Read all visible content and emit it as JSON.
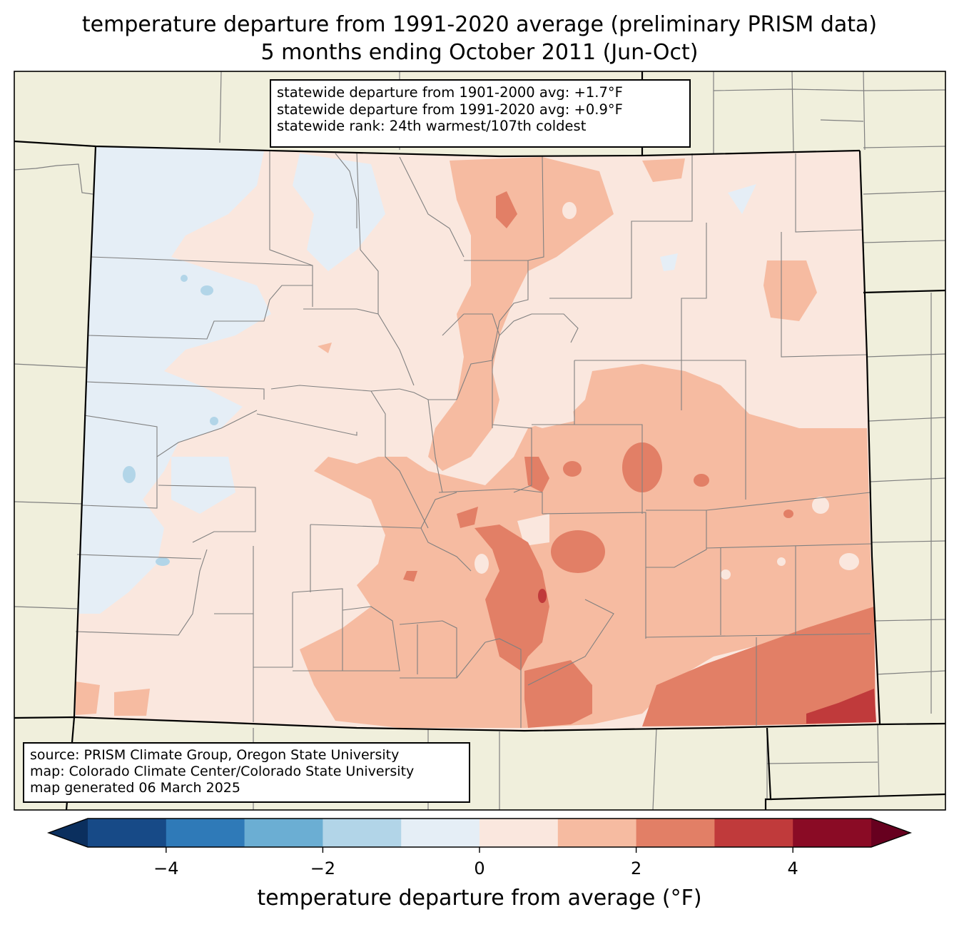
{
  "title": {
    "line1": "temperature departure from 1991-2020 average (preliminary PRISM data)",
    "line2": "5 months ending October 2011 (Jun-Oct)"
  },
  "stats": {
    "line1": "statewide departure from 1901-2000 avg: +1.7°F",
    "line2": "statewide departure from 1991-2020 avg: +0.9°F",
    "line3": "statewide rank: 24th warmest/107th coldest"
  },
  "source": {
    "line1": "source: PRISM Climate Group, Oregon State University",
    "line2": "map: Colorado Climate Center/Colorado State University",
    "line3": "map generated 06 March 2025"
  },
  "colorbar": {
    "label": "temperature departure from average (°F)",
    "ticks": [
      "−4",
      "−2",
      "0",
      "2",
      "4"
    ],
    "tick_values": [
      -4,
      -2,
      0,
      2,
      4
    ],
    "bins": [
      {
        "from": -5,
        "to": -4,
        "color": "#174a87"
      },
      {
        "from": -4,
        "to": -3,
        "color": "#2f7ab8"
      },
      {
        "from": -3,
        "to": -2,
        "color": "#6baed3"
      },
      {
        "from": -2,
        "to": -1,
        "color": "#b2d5e8"
      },
      {
        "from": -1,
        "to": 0,
        "color": "#e5eef6"
      },
      {
        "from": 0,
        "to": 1,
        "color": "#fae7de"
      },
      {
        "from": 1,
        "to": 2,
        "color": "#f6bba1"
      },
      {
        "from": 2,
        "to": 3,
        "color": "#e27f66"
      },
      {
        "from": 3,
        "to": 4,
        "color": "#c03a3b"
      },
      {
        "from": 4,
        "to": 5,
        "color": "#8a0b25"
      }
    ],
    "extend_low_color": "#0b2f5e",
    "extend_high_color": "#67001f"
  },
  "map_colors": {
    "land_outside": "#f0efdc",
    "county_lines": "#808080",
    "state_lines": "#000000"
  }
}
